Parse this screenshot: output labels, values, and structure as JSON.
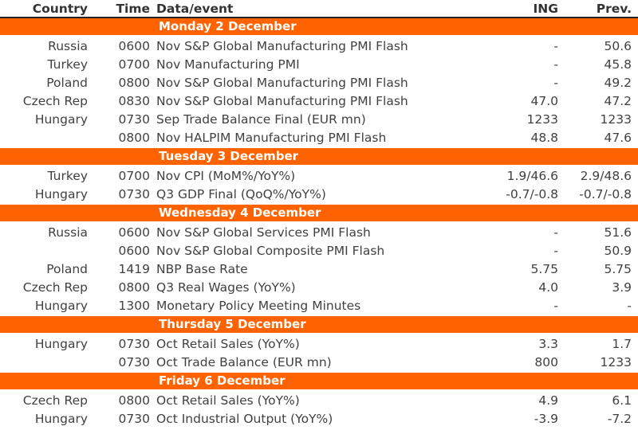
{
  "table": {
    "columns": {
      "country": "Country",
      "time": "Time",
      "event": "Data/event",
      "ing": "ING",
      "prev": "Prev."
    },
    "colors": {
      "accent": "#FF6200",
      "band_text": "#FFFFFF",
      "header_text": "#333333",
      "body_text": "#414141",
      "header_rule": "#222222"
    },
    "sections": [
      {
        "title": "Monday 2 December",
        "rows": [
          {
            "country": "Russia",
            "time": "0600",
            "event": "Nov S&P Global Manufacturing PMI Flash",
            "ing": "-",
            "prev": "50.6"
          },
          {
            "country": "Turkey",
            "time": "0700",
            "event": "Nov Manufacturing PMI",
            "ing": "-",
            "prev": "45.8"
          },
          {
            "country": "Poland",
            "time": "0800",
            "event": "Nov S&P Global Manufacturing PMI Flash",
            "ing": "-",
            "prev": "49.2"
          },
          {
            "country": "Czech Rep",
            "time": "0830",
            "event": "Nov S&P Global Manufacturing PMI Flash",
            "ing": "47.0",
            "prev": "47.2"
          },
          {
            "country": "Hungary",
            "time": "0730",
            "event": "Sep Trade Balance Final (EUR mn)",
            "ing": "1233",
            "prev": "1233"
          },
          {
            "country": "",
            "time": "0800",
            "event": "Nov HALPIM Manufacturing PMI Flash",
            "ing": "48.8",
            "prev": "47.6"
          }
        ]
      },
      {
        "title": "Tuesday 3 December",
        "rows": [
          {
            "country": "Turkey",
            "time": "0700",
            "event": "Nov CPI (MoM%/YoY%)",
            "ing": "1.9/46.6",
            "prev": "2.9/48.6"
          },
          {
            "country": "Hungary",
            "time": "0730",
            "event": "Q3 GDP Final (QoQ%/YoY%)",
            "ing": "-0.7/-0.8",
            "prev": "-0.7/-0.8"
          }
        ]
      },
      {
        "title": "Wednesday 4 December",
        "rows": [
          {
            "country": "Russia",
            "time": "0600",
            "event": "Nov S&P Global Services PMI Flash",
            "ing": "-",
            "prev": "51.6"
          },
          {
            "country": "",
            "time": "0600",
            "event": "Nov S&P Global Composite PMI Flash",
            "ing": "-",
            "prev": "50.9"
          },
          {
            "country": "Poland",
            "time": "1419",
            "event": "NBP Base Rate",
            "ing": "5.75",
            "prev": "5.75"
          },
          {
            "country": "Czech Rep",
            "time": "0800",
            "event": "Q3 Real Wages (YoY%)",
            "ing": "4.0",
            "prev": "3.9"
          },
          {
            "country": "Hungary",
            "time": "1300",
            "event": "Monetary Policy Meeting Minutes",
            "ing": "-",
            "prev": "-"
          }
        ]
      },
      {
        "title": "Thursday 5 December",
        "rows": [
          {
            "country": "Hungary",
            "time": "0730",
            "event": "Oct Retail Sales (YoY%)",
            "ing": "3.3",
            "prev": "1.7"
          },
          {
            "country": "",
            "time": "0730",
            "event": "Oct Trade Balance (EUR mn)",
            "ing": "800",
            "prev": "1233"
          }
        ]
      },
      {
        "title": "Friday 6 December",
        "rows": [
          {
            "country": "Czech Rep",
            "time": "0800",
            "event": "Oct Retail Sales (YoY%)",
            "ing": "4.9",
            "prev": "6.1"
          },
          {
            "country": "Hungary",
            "time": "0730",
            "event": "Oct Industrial Output (YoY%)",
            "ing": "-3.9",
            "prev": "-7.2"
          }
        ]
      }
    ]
  }
}
